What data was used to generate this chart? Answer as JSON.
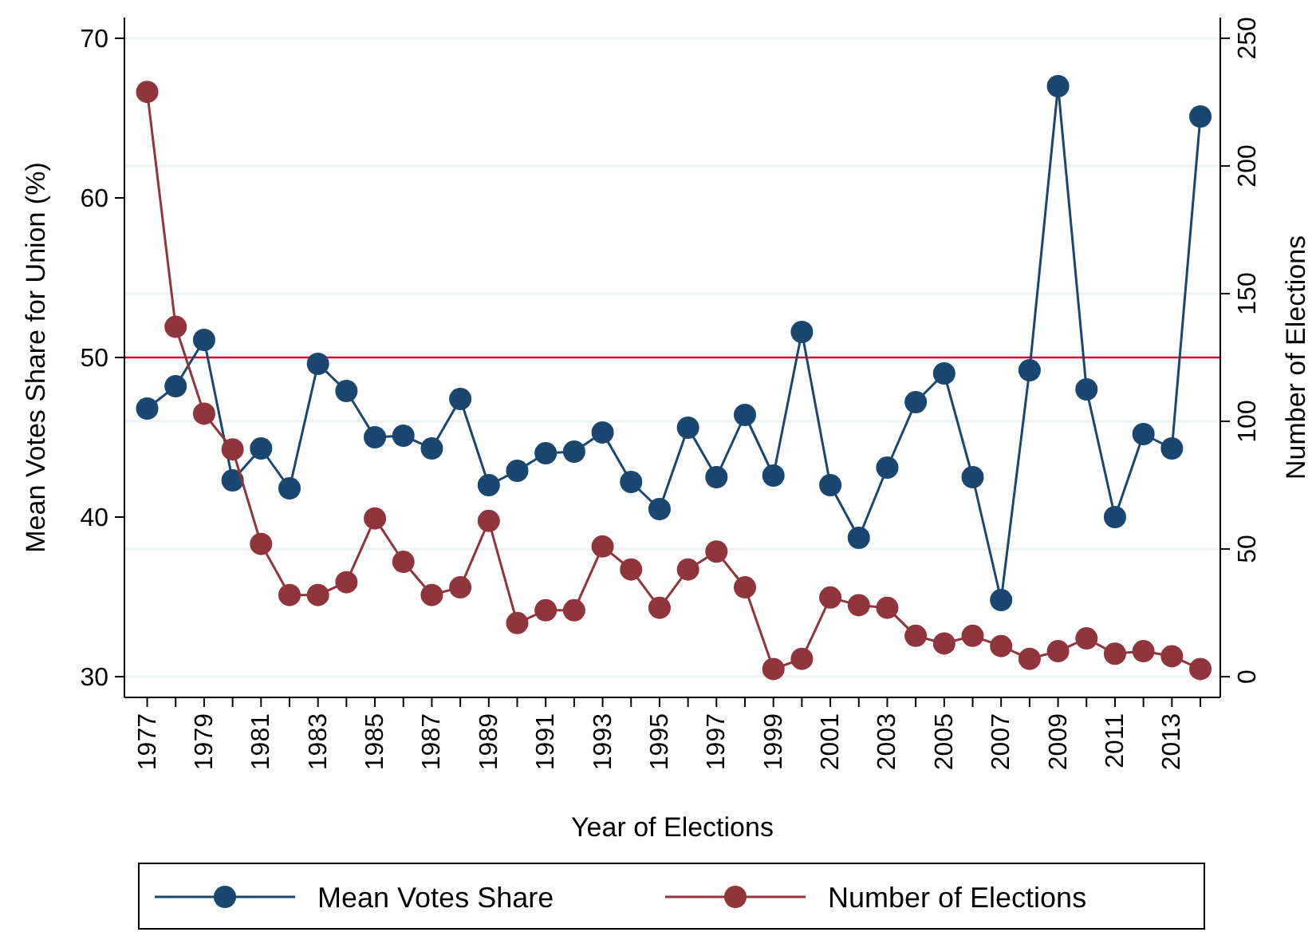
{
  "chart_data": {
    "type": "line",
    "xlabel": "Year of Elections",
    "ylabel": "Mean Votes Share for Union (%)",
    "y2label": "Number of Elections",
    "x": [
      1977,
      1978,
      1979,
      1980,
      1981,
      1982,
      1983,
      1984,
      1985,
      1986,
      1987,
      1988,
      1989,
      1990,
      1991,
      1992,
      1993,
      1994,
      1995,
      1996,
      1997,
      1998,
      1999,
      2000,
      2001,
      2002,
      2003,
      2004,
      2005,
      2006,
      2007,
      2008,
      2009,
      2010,
      2011,
      2012,
      2013,
      2014
    ],
    "series": [
      {
        "name": "Mean Votes Share",
        "color": "#1a476f",
        "values": [
          46.8,
          48.2,
          51.1,
          42.3,
          44.3,
          41.8,
          49.6,
          47.9,
          45.0,
          45.1,
          44.3,
          47.4,
          42.0,
          42.9,
          44.0,
          44.1,
          45.3,
          42.2,
          40.5,
          45.6,
          42.5,
          46.4,
          42.6,
          51.6,
          42.0,
          38.7,
          43.1,
          47.2,
          49.0,
          42.5,
          34.8,
          49.2,
          67.0,
          48.0,
          40.0,
          45.2,
          44.3,
          65.1
        ]
      },
      {
        "name": "Number of Elections",
        "color": "#90353b",
        "axis": "y2",
        "values": [
          229,
          137,
          103,
          89,
          52,
          32,
          32,
          37,
          62,
          45,
          32,
          35,
          61,
          21,
          26,
          26,
          51,
          42,
          27,
          42,
          49,
          35,
          3,
          7,
          31,
          28,
          27,
          16,
          13,
          16,
          12,
          7,
          10,
          15,
          9,
          10,
          8,
          3
        ]
      }
    ],
    "xlim": [
      1976.2,
      2014.7
    ],
    "xticks": [
      1977,
      {
        "value": 1978,
        "label": null
      },
      1979,
      {
        "value": 1980,
        "label": null
      },
      1981,
      {
        "value": 1982,
        "label": null
      },
      1983,
      {
        "value": 1984,
        "label": null
      },
      1985,
      {
        "value": 1986,
        "label": null
      },
      1987,
      {
        "value": 1988,
        "label": null
      },
      1989,
      {
        "value": 1990,
        "label": null
      },
      1991,
      {
        "value": 1992,
        "label": null
      },
      1993,
      {
        "value": 1994,
        "label": null
      },
      1995,
      {
        "value": 1996,
        "label": null
      },
      1997,
      {
        "value": 1998,
        "label": null
      },
      1999,
      {
        "value": 2000,
        "label": null
      },
      2001,
      {
        "value": 2002,
        "label": null
      },
      2003,
      {
        "value": 2004,
        "label": null
      },
      2005,
      {
        "value": 2006,
        "label": null
      },
      2007,
      {
        "value": 2008,
        "label": null
      },
      2009,
      {
        "value": 2010,
        "label": null
      },
      2011,
      {
        "value": 2012,
        "label": null
      },
      2013,
      {
        "value": 2014,
        "label": null
      }
    ],
    "ylim": [
      28.7,
      71.3
    ],
    "yticks": [
      30,
      40,
      50,
      60,
      70
    ],
    "y2lim": [
      -8.1,
      258.1
    ],
    "y2ticks": [
      0,
      50,
      100,
      150,
      200,
      250
    ],
    "ref_lines": [
      {
        "axis": "y",
        "value": 50,
        "color": "#d0103a"
      }
    ],
    "grid": "y2",
    "legend": "bottom",
    "marker": "circle",
    "line_style": "solid"
  }
}
